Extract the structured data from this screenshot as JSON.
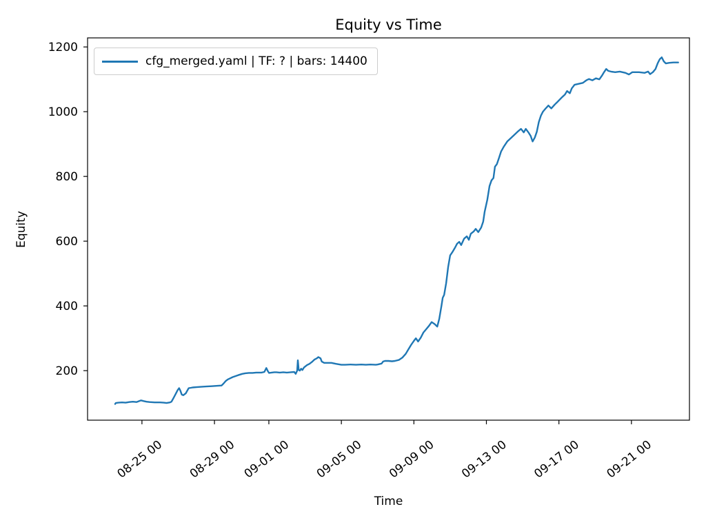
{
  "figure": {
    "title": "Equity vs Time",
    "x_axis_label": "Time",
    "y_axis_label": "Equity",
    "background_color": "#ffffff",
    "spine_color": "#000000",
    "text_color": "#000000"
  },
  "legend": {
    "label": "cfg_merged.yaml | TF: ? | bars: 14400",
    "line_color": "#1f77b4",
    "position": "upper left"
  },
  "chart_data": {
    "type": "line",
    "title": "Equity vs Time",
    "xlabel": "Time",
    "ylabel": "Equity",
    "grid": false,
    "legend_position": "upper left",
    "x_unit": "days since 08-25 00:00 (x tick labels are MM-DD HH dates)",
    "xlim": [
      -3.0,
      30.2
    ],
    "ylim": [
      47,
      1228
    ],
    "x_ticks": [
      0,
      4,
      7,
      11,
      15,
      19,
      23,
      27
    ],
    "x_tick_labels": [
      "08-25 00",
      "08-29 00",
      "09-01 00",
      "09-05 00",
      "09-09 00",
      "09-13 00",
      "09-17 00",
      "09-21 00"
    ],
    "y_ticks": [
      200,
      400,
      600,
      800,
      1000,
      1200
    ],
    "y_tick_labels": [
      "200",
      "400",
      "600",
      "800",
      "1000",
      "1200"
    ],
    "series": [
      {
        "name": "cfg_merged.yaml | TF: ? | bars: 14400",
        "color": "#1f77b4",
        "line_width": 2.4,
        "points": [
          [
            -1.48,
            97
          ],
          [
            -1.44,
            100
          ],
          [
            -1.3,
            101
          ],
          [
            -1.1,
            102
          ],
          [
            -0.9,
            101
          ],
          [
            -0.7,
            103
          ],
          [
            -0.5,
            104
          ],
          [
            -0.3,
            103
          ],
          [
            -0.15,
            106
          ],
          [
            -0.05,
            108
          ],
          [
            0.1,
            106
          ],
          [
            0.25,
            104
          ],
          [
            0.42,
            103
          ],
          [
            0.7,
            102
          ],
          [
            1.0,
            102
          ],
          [
            1.2,
            101
          ],
          [
            1.36,
            100
          ],
          [
            1.55,
            102
          ],
          [
            1.63,
            104
          ],
          [
            1.74,
            115
          ],
          [
            1.86,
            128
          ],
          [
            1.97,
            140
          ],
          [
            2.05,
            146
          ],
          [
            2.12,
            138
          ],
          [
            2.2,
            126
          ],
          [
            2.28,
            124
          ],
          [
            2.42,
            130
          ],
          [
            2.5,
            138
          ],
          [
            2.58,
            146
          ],
          [
            2.7,
            147
          ],
          [
            2.8,
            148
          ],
          [
            3.0,
            149
          ],
          [
            3.26,
            150
          ],
          [
            3.55,
            151
          ],
          [
            3.83,
            152
          ],
          [
            4.1,
            153
          ],
          [
            4.39,
            154
          ],
          [
            4.5,
            160
          ],
          [
            4.62,
            168
          ],
          [
            4.74,
            173
          ],
          [
            4.85,
            176
          ],
          [
            5.0,
            180
          ],
          [
            5.15,
            183
          ],
          [
            5.3,
            186
          ],
          [
            5.53,
            190
          ],
          [
            5.7,
            192
          ],
          [
            5.9,
            193
          ],
          [
            6.1,
            193
          ],
          [
            6.3,
            194
          ],
          [
            6.59,
            194
          ],
          [
            6.75,
            196
          ],
          [
            6.86,
            208
          ],
          [
            6.95,
            198
          ],
          [
            7.01,
            193
          ],
          [
            7.15,
            194
          ],
          [
            7.3,
            195
          ],
          [
            7.42,
            195
          ],
          [
            7.6,
            194
          ],
          [
            7.8,
            195
          ],
          [
            7.99,
            194
          ],
          [
            8.2,
            195
          ],
          [
            8.4,
            196
          ],
          [
            8.48,
            190
          ],
          [
            8.56,
            200
          ],
          [
            8.6,
            232
          ],
          [
            8.65,
            202
          ],
          [
            8.71,
            200
          ],
          [
            8.78,
            206
          ],
          [
            8.85,
            202
          ],
          [
            8.94,
            210
          ],
          [
            9.1,
            217
          ],
          [
            9.24,
            221
          ],
          [
            9.4,
            228
          ],
          [
            9.51,
            234
          ],
          [
            9.65,
            238
          ],
          [
            9.73,
            242
          ],
          [
            9.85,
            238
          ],
          [
            9.92,
            228
          ],
          [
            10.05,
            224
          ],
          [
            10.45,
            224
          ],
          [
            10.7,
            221
          ],
          [
            11.0,
            218
          ],
          [
            11.21,
            218
          ],
          [
            11.5,
            219
          ],
          [
            11.8,
            218
          ],
          [
            12.1,
            219
          ],
          [
            12.35,
            218
          ],
          [
            12.6,
            219
          ],
          [
            12.9,
            218
          ],
          [
            13.0,
            219
          ],
          [
            13.22,
            222
          ],
          [
            13.3,
            228
          ],
          [
            13.41,
            230
          ],
          [
            13.6,
            230
          ],
          [
            13.79,
            229
          ],
          [
            13.95,
            230
          ],
          [
            14.17,
            233
          ],
          [
            14.36,
            240
          ],
          [
            14.55,
            252
          ],
          [
            14.7,
            266
          ],
          [
            14.85,
            280
          ],
          [
            15.0,
            292
          ],
          [
            15.11,
            300
          ],
          [
            15.23,
            290
          ],
          [
            15.38,
            302
          ],
          [
            15.53,
            318
          ],
          [
            15.68,
            328
          ],
          [
            15.83,
            338
          ],
          [
            15.98,
            350
          ],
          [
            16.14,
            344
          ],
          [
            16.29,
            336
          ],
          [
            16.4,
            360
          ],
          [
            16.52,
            400
          ],
          [
            16.59,
            425
          ],
          [
            16.67,
            434
          ],
          [
            16.78,
            470
          ],
          [
            16.89,
            520
          ],
          [
            17.0,
            556
          ],
          [
            17.12,
            566
          ],
          [
            17.27,
            580
          ],
          [
            17.38,
            592
          ],
          [
            17.5,
            598
          ],
          [
            17.61,
            588
          ],
          [
            17.77,
            608
          ],
          [
            17.92,
            615
          ],
          [
            18.03,
            604
          ],
          [
            18.14,
            623
          ],
          [
            18.3,
            630
          ],
          [
            18.41,
            638
          ],
          [
            18.55,
            628
          ],
          [
            18.71,
            642
          ],
          [
            18.82,
            660
          ],
          [
            18.9,
            690
          ],
          [
            19.05,
            728
          ],
          [
            19.17,
            770
          ],
          [
            19.28,
            788
          ],
          [
            19.39,
            795
          ],
          [
            19.47,
            830
          ],
          [
            19.58,
            838
          ],
          [
            19.7,
            858
          ],
          [
            19.81,
            877
          ],
          [
            19.96,
            892
          ],
          [
            20.15,
            908
          ],
          [
            20.34,
            918
          ],
          [
            20.57,
            930
          ],
          [
            20.76,
            940
          ],
          [
            20.91,
            947
          ],
          [
            21.06,
            936
          ],
          [
            21.17,
            947
          ],
          [
            21.33,
            935
          ],
          [
            21.44,
            925
          ],
          [
            21.55,
            908
          ],
          [
            21.67,
            920
          ],
          [
            21.78,
            938
          ],
          [
            21.89,
            968
          ],
          [
            22.01,
            988
          ],
          [
            22.12,
            1000
          ],
          [
            22.27,
            1010
          ],
          [
            22.42,
            1019
          ],
          [
            22.58,
            1010
          ],
          [
            22.77,
            1022
          ],
          [
            22.95,
            1032
          ],
          [
            23.14,
            1043
          ],
          [
            23.33,
            1053
          ],
          [
            23.45,
            1064
          ],
          [
            23.6,
            1057
          ],
          [
            23.71,
            1072
          ],
          [
            23.86,
            1083
          ],
          [
            24.09,
            1086
          ],
          [
            24.32,
            1089
          ],
          [
            24.51,
            1097
          ],
          [
            24.66,
            1101
          ],
          [
            24.85,
            1097
          ],
          [
            25.04,
            1103
          ],
          [
            25.23,
            1100
          ],
          [
            25.38,
            1112
          ],
          [
            25.49,
            1122
          ],
          [
            25.61,
            1132
          ],
          [
            25.72,
            1126
          ],
          [
            25.87,
            1124
          ],
          [
            26.1,
            1122
          ],
          [
            26.36,
            1124
          ],
          [
            26.67,
            1120
          ],
          [
            26.86,
            1115
          ],
          [
            27.05,
            1122
          ],
          [
            27.42,
            1122
          ],
          [
            27.73,
            1120
          ],
          [
            27.92,
            1124
          ],
          [
            28.03,
            1116
          ],
          [
            28.18,
            1122
          ],
          [
            28.33,
            1132
          ],
          [
            28.45,
            1150
          ],
          [
            28.56,
            1162
          ],
          [
            28.67,
            1168
          ],
          [
            28.79,
            1155
          ],
          [
            28.9,
            1149
          ],
          [
            29.09,
            1151
          ],
          [
            29.32,
            1152
          ],
          [
            29.58,
            1152
          ]
        ]
      }
    ]
  }
}
